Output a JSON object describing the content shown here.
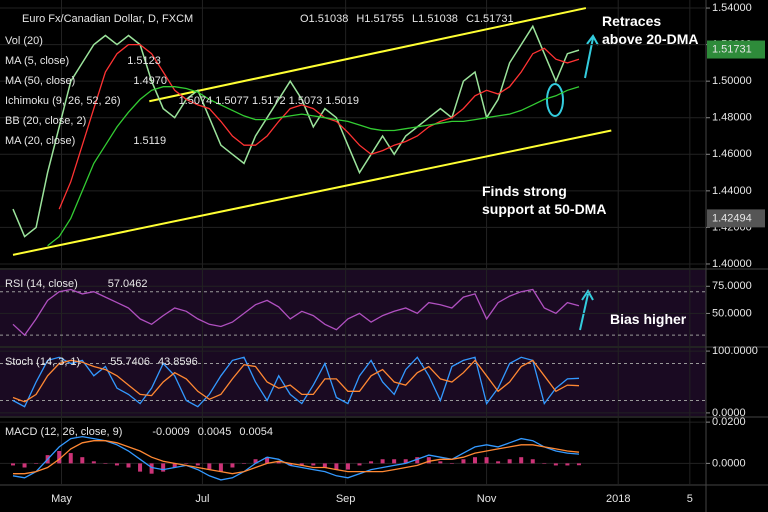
{
  "chart_data": [
    {
      "type": "line",
      "title": "Euro Fx/Canadian Dollar, D, FXCM",
      "ohlc": [
        "O1.51038",
        "H1.51755",
        "L1.51038",
        "C1.51731"
      ],
      "indicators": [
        {
          "name": "Vol (20)"
        },
        {
          "name": "MA (5, close)",
          "value": "1.5123",
          "color": "#ffd700"
        },
        {
          "name": "MA (50, close)",
          "value": "1.4970",
          "color": "#33cc33"
        },
        {
          "name": "Ichimoku (9, 26, 52, 26)",
          "value": "1.5074  1.5077  1.5172  1.5073  1.5019",
          "color": "#ffffff"
        },
        {
          "name": "BB (20, close, 2)"
        },
        {
          "name": "MA (20, close)",
          "value": "1.5119",
          "color": "#ff3333"
        }
      ],
      "annotations": [
        "Retraces above 20-DMA",
        "Finds strong support at 50-DMA"
      ],
      "x": [
        0,
        5,
        10,
        15,
        20,
        25,
        30,
        35,
        40,
        45,
        50,
        55,
        60,
        65,
        70,
        75,
        80,
        85,
        90,
        95,
        100,
        105,
        110,
        115,
        120,
        125,
        130,
        135,
        140,
        145,
        150,
        155,
        160,
        165,
        170,
        175,
        180,
        185,
        190,
        195,
        200,
        205,
        210,
        215,
        220,
        225,
        230,
        235,
        240,
        245
      ],
      "xlim": [
        0,
        300
      ],
      "ylim": [
        1.3978,
        1.5444
      ],
      "yticks": [
        {
          "value": 1.4,
          "label": "1.40000"
        },
        {
          "value": 1.42,
          "label": "1.42000"
        },
        {
          "value": 1.44,
          "label": "1.44000"
        },
        {
          "value": 1.46,
          "label": "1.46000"
        },
        {
          "value": 1.48,
          "label": "1.48000"
        },
        {
          "value": 1.5,
          "label": "1.50000"
        },
        {
          "value": 1.52,
          "label": "1.52000"
        },
        {
          "value": 1.54,
          "label": "1.54000"
        }
      ],
      "price_labels": [
        {
          "value": 1.51731,
          "label": "1.51731",
          "color": "#2e8b3a"
        },
        {
          "value": 1.42494,
          "label": "1.42494",
          "color": "#555555"
        }
      ],
      "channel_lines": [
        {
          "x": [
            59,
            248
          ],
          "y": [
            1.489,
            1.54
          ],
          "color": "#ffff33"
        },
        {
          "x": [
            0,
            259
          ],
          "y": [
            1.405,
            1.473
          ],
          "color": "#ffff33"
        }
      ],
      "series": [
        {
          "name": "Price",
          "color": "#9be39b",
          "values": [
            1.43,
            1.415,
            1.42,
            1.45,
            1.475,
            1.5,
            1.51,
            1.52,
            1.525,
            1.52,
            1.525,
            1.52,
            1.5,
            1.485,
            1.48,
            1.49,
            1.495,
            1.48,
            1.465,
            1.46,
            1.455,
            1.47,
            1.48,
            1.49,
            1.5,
            1.49,
            1.475,
            1.485,
            1.48,
            1.465,
            1.45,
            1.46,
            1.47,
            1.46,
            1.47,
            1.475,
            1.48,
            1.485,
            1.48,
            1.5,
            1.505,
            1.48,
            1.49,
            1.51,
            1.52,
            1.53,
            1.515,
            1.5,
            1.515,
            1.517
          ]
        },
        {
          "name": "MA (20, close)",
          "color": "#ff3333",
          "values": [
            null,
            null,
            null,
            null,
            1.43,
            1.445,
            1.465,
            1.485,
            1.505,
            1.515,
            1.52,
            1.52,
            1.515,
            1.505,
            1.495,
            1.49,
            1.487,
            1.485,
            1.478,
            1.47,
            1.465,
            1.465,
            1.47,
            1.478,
            1.485,
            1.487,
            1.485,
            1.48,
            1.478,
            1.472,
            1.465,
            1.46,
            1.462,
            1.465,
            1.467,
            1.47,
            1.475,
            1.478,
            1.48,
            1.485,
            1.492,
            1.495,
            1.493,
            1.497,
            1.505,
            1.515,
            1.518,
            1.512,
            1.51,
            1.512
          ]
        },
        {
          "name": "MA (50, close)",
          "color": "#33cc33",
          "values": [
            null,
            null,
            null,
            1.41,
            1.415,
            1.425,
            1.44,
            1.455,
            1.465,
            1.475,
            1.483,
            1.49,
            1.495,
            1.497,
            1.497,
            1.496,
            1.494,
            1.49,
            1.487,
            1.484,
            1.481,
            1.479,
            1.479,
            1.48,
            1.481,
            1.482,
            1.481,
            1.48,
            1.479,
            1.478,
            1.476,
            1.474,
            1.473,
            1.473,
            1.474,
            1.475,
            1.476,
            1.477,
            1.478,
            1.478,
            1.479,
            1.48,
            1.481,
            1.482,
            1.484,
            1.487,
            1.49,
            1.492,
            1.495,
            1.497
          ]
        }
      ]
    },
    {
      "type": "line",
      "label": "RSI (14, close)",
      "readouts": [
        {
          "text": "57.0462",
          "color": "#b050c0"
        }
      ],
      "annotations": [
        "Bias higher"
      ],
      "ylim": [
        20,
        90
      ],
      "yticks": [
        {
          "value": 75,
          "label": "75.0000"
        },
        {
          "value": 50,
          "label": "50.0000"
        }
      ],
      "levels": [
        70,
        30
      ],
      "series": [
        {
          "name": "RSI",
          "color": "#b050c0",
          "values": [
            40,
            30,
            45,
            62,
            70,
            72,
            68,
            70,
            65,
            60,
            55,
            45,
            40,
            48,
            55,
            52,
            45,
            40,
            38,
            42,
            50,
            58,
            62,
            56,
            45,
            52,
            48,
            40,
            35,
            45,
            50,
            42,
            48,
            52,
            55,
            50,
            60,
            58,
            55,
            65,
            68,
            45,
            60,
            66,
            70,
            72,
            55,
            50,
            60,
            57
          ]
        }
      ]
    },
    {
      "type": "line",
      "label": "Stoch (14, 3, 1)",
      "readouts": [
        {
          "text": "55.7406",
          "color": "#3399ff"
        },
        {
          "text": "43.8596",
          "color": "#ff8833"
        }
      ],
      "ylim": [
        -5,
        105
      ],
      "yticks": [
        {
          "value": 100,
          "label": "100.0000"
        },
        {
          "value": 0,
          "label": "0.0000"
        }
      ],
      "levels": [
        80,
        20
      ],
      "series": [
        {
          "name": "%K",
          "color": "#3399ff",
          "values": [
            20,
            10,
            50,
            85,
            90,
            80,
            85,
            60,
            75,
            40,
            30,
            15,
            40,
            80,
            60,
            20,
            10,
            30,
            60,
            85,
            90,
            50,
            20,
            60,
            30,
            15,
            45,
            80,
            25,
            15,
            60,
            85,
            50,
            30,
            70,
            90,
            60,
            20,
            75,
            85,
            90,
            15,
            40,
            80,
            90,
            85,
            15,
            40,
            55,
            56
          ]
        },
        {
          "name": "%D",
          "color": "#ff8833",
          "values": [
            25,
            18,
            30,
            60,
            80,
            85,
            82,
            75,
            70,
            60,
            45,
            30,
            28,
            50,
            65,
            55,
            35,
            22,
            30,
            55,
            78,
            75,
            50,
            40,
            45,
            30,
            30,
            55,
            55,
            35,
            35,
            60,
            70,
            50,
            45,
            65,
            75,
            55,
            50,
            65,
            85,
            60,
            35,
            50,
            75,
            85,
            60,
            35,
            45,
            44
          ]
        }
      ]
    },
    {
      "type": "line",
      "label": "MACD (12, 26, close, 9)",
      "readouts": [
        {
          "text": "-0.0009",
          "color": "#ff3366"
        },
        {
          "text": "0.0045",
          "color": "#3399ff"
        },
        {
          "text": "0.0054",
          "color": "#ff8833"
        }
      ],
      "ylim": [
        -0.01,
        0.022
      ],
      "yticks": [
        {
          "value": 0.02,
          "label": "0.0200"
        },
        {
          "value": 0,
          "label": "0.0000"
        }
      ],
      "xticks": [
        {
          "value": 21,
          "label": "May"
        },
        {
          "value": 82,
          "label": "Jul"
        },
        {
          "value": 144,
          "label": "Sep"
        },
        {
          "value": 205,
          "label": "Nov"
        },
        {
          "value": 262,
          "label": "2018"
        },
        {
          "value": 293,
          "label": "5"
        }
      ],
      "series": [
        {
          "name": "Histogram",
          "type": "bar",
          "color": "#cc3377",
          "values": [
            -0.001,
            -0.002,
            0,
            0.004,
            0.006,
            0.005,
            0.003,
            0.001,
            0,
            -0.001,
            -0.002,
            -0.004,
            -0.005,
            -0.004,
            -0.002,
            0,
            -0.001,
            -0.003,
            -0.004,
            -0.002,
            0,
            0.002,
            0.003,
            0.001,
            -0.001,
            -0.001,
            -0.001,
            -0.002,
            -0.003,
            -0.003,
            -0.001,
            0.001,
            0.002,
            0.002,
            0.002,
            0.003,
            0.003,
            0.001,
            0,
            0.002,
            0.003,
            0.003,
            0.001,
            0.002,
            0.003,
            0.002,
            0,
            -0.001,
            -0.001,
            -0.0009
          ]
        },
        {
          "name": "MACD",
          "color": "#3399ff",
          "values": [
            -0.006,
            -0.007,
            -0.004,
            0.002,
            0.008,
            0.012,
            0.013,
            0.012,
            0.011,
            0.009,
            0.006,
            0.002,
            -0.002,
            -0.003,
            -0.002,
            -0.001,
            -0.003,
            -0.006,
            -0.008,
            -0.007,
            -0.004,
            0,
            0.003,
            0.002,
            -0.001,
            -0.002,
            -0.003,
            -0.004,
            -0.006,
            -0.007,
            -0.005,
            -0.003,
            -0.002,
            -0.001,
            0,
            0.002,
            0.004,
            0.003,
            0.002,
            0.005,
            0.008,
            0.009,
            0.008,
            0.01,
            0.012,
            0.011,
            0.008,
            0.006,
            0.005,
            0.0045
          ]
        },
        {
          "name": "Signal",
          "color": "#ff8833",
          "values": [
            -0.005,
            -0.005,
            -0.004,
            -0.002,
            0.002,
            0.007,
            0.01,
            0.011,
            0.011,
            0.01,
            0.008,
            0.006,
            0.003,
            0.001,
            0,
            -0.001,
            -0.002,
            -0.003,
            -0.004,
            -0.005,
            -0.004,
            -0.002,
            0,
            0.001,
            0,
            -0.001,
            -0.002,
            -0.002,
            -0.003,
            -0.004,
            -0.004,
            -0.004,
            -0.004,
            -0.003,
            -0.002,
            -0.001,
            0.001,
            0.002,
            0.002,
            0.003,
            0.005,
            0.006,
            0.007,
            0.008,
            0.009,
            0.009,
            0.008,
            0.007,
            0.006,
            0.0054
          ]
        }
      ]
    }
  ]
}
